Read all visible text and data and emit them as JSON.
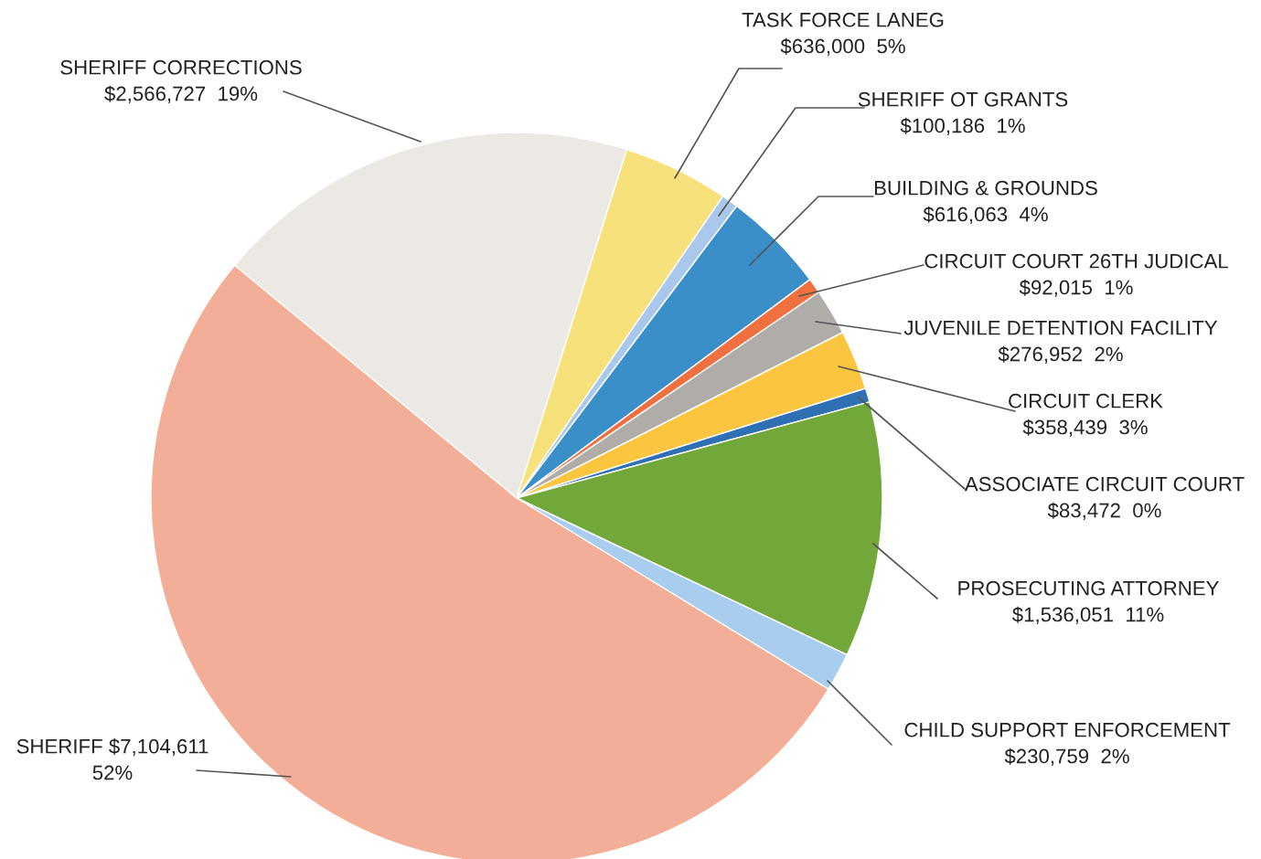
{
  "chart_data": {
    "type": "pie",
    "categories": [
      "TASK FORCE LANEG",
      "SHERIFF OT GRANTS",
      "BUILDING & GROUNDS",
      "CIRCUIT COURT 26TH JUDICAL",
      "JUVENILE DETENTION FACILITY",
      "CIRCUIT CLERK",
      "ASSOCIATE CIRCUIT COURT",
      "PROSECUTING ATTORNEY",
      "CHILD SUPPORT ENFORCEMENT",
      "SHERIFF",
      "SHERIFF CORRECTIONS"
    ],
    "values": [
      636000,
      100186,
      616063,
      92015,
      276952,
      358439,
      83472,
      1536051,
      230759,
      7104611,
      2566727
    ],
    "value_labels": [
      "$636,000  5%",
      "$100,186  1%",
      "$616,063  4%",
      "$92,015  1%",
      "$276,952  2%",
      "$358,439  3%",
      "$83,472  0%",
      "$1,536,051  11%",
      "$230,759  2%",
      "$7,104,611\n52%",
      "$2,566,727  19%"
    ],
    "colors": [
      "#f7e17a",
      "#a9c8ec",
      "#3a8fc9",
      "#f07040",
      "#b0aca8",
      "#fbc540",
      "#2f6fb4",
      "#72a83a",
      "#a8cdef",
      "#f3ae98",
      "#ece9e4"
    ]
  }
}
